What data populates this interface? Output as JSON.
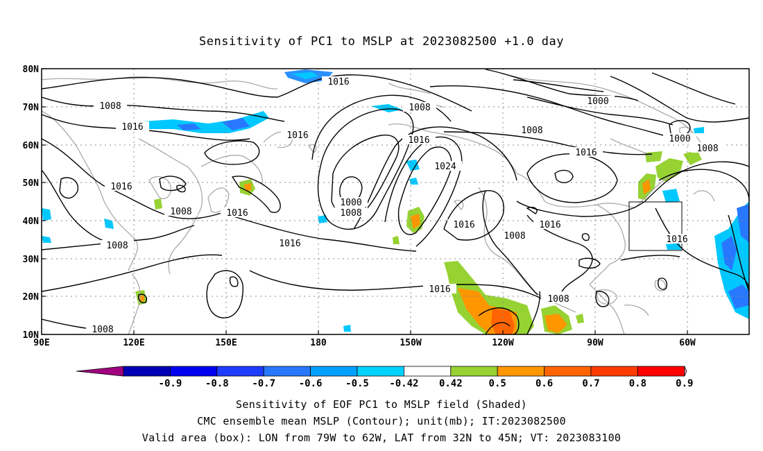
{
  "title": "Sensitivity of PC1 to MSLP at 2023082500 +1.0 day",
  "map": {
    "lat_labels": [
      "80N",
      "70N",
      "60N",
      "50N",
      "40N",
      "30N",
      "20N",
      "10N"
    ],
    "lon_labels": [
      "90E",
      "120E",
      "150E",
      "180",
      "150W",
      "120W",
      "90W",
      "60W"
    ],
    "contour_labels": [
      {
        "text": "1016",
        "name": "isobar-label-1016-north"
      },
      {
        "text": "1008",
        "name": "isobar-label-1008-asia-north"
      },
      {
        "text": "1016",
        "name": "isobar-label-1016-siberia"
      },
      {
        "text": "1016",
        "name": "isobar-label-1016-mongolia"
      },
      {
        "text": "1008",
        "name": "isobar-label-1008-china"
      },
      {
        "text": "1016",
        "name": "isobar-label-1016-japan"
      },
      {
        "text": "1008",
        "name": "isobar-label-1008-south-china"
      },
      {
        "text": "1008",
        "name": "isobar-label-1008-philippines"
      },
      {
        "text": "1016",
        "name": "isobar-label-1016-kamchatka"
      },
      {
        "text": "1016",
        "name": "isobar-label-1016-subtropical"
      },
      {
        "text": "1008",
        "name": "isobar-label-1008-arctic"
      },
      {
        "text": "1016",
        "name": "isobar-label-1016-gulf-of-alaska"
      },
      {
        "text": "1024",
        "name": "isobar-label-1024-high"
      },
      {
        "text": "1000",
        "name": "isobar-label-1000-low"
      },
      {
        "text": "1008",
        "name": "isobar-label-1008-low"
      },
      {
        "text": "1008",
        "name": "isobar-label-1008-canada"
      },
      {
        "text": "1000",
        "name": "isobar-label-1000-arctic-canada"
      },
      {
        "text": "1016",
        "name": "isobar-label-1016-hudson"
      },
      {
        "text": "1000",
        "name": "isobar-label-1000-labrador"
      },
      {
        "text": "1008",
        "name": "isobar-label-1008-labrador"
      },
      {
        "text": "1016",
        "name": "isobar-label-1016-north-pacific"
      },
      {
        "text": "1016",
        "name": "isobar-label-1016-us"
      },
      {
        "text": "1008",
        "name": "isobar-label-1008-southwest-us"
      },
      {
        "text": "1016",
        "name": "isobar-label-1016-atlantic"
      },
      {
        "text": "1016",
        "name": "isobar-label-1016-east-pacific"
      },
      {
        "text": "1008",
        "name": "isobar-label-1008-mexico"
      }
    ],
    "valid_box": {
      "lon_from": "79W",
      "lon_to": "62W",
      "lat_from": "32N",
      "lat_to": "45N"
    }
  },
  "colorbar": {
    "labels": [
      "-0.9",
      "-0.8",
      "-0.7",
      "-0.6",
      "-0.5",
      "-0.42",
      "0.42",
      "0.5",
      "0.6",
      "0.7",
      "0.8",
      "0.9"
    ],
    "colors": [
      "#a0007f",
      "#0000b4",
      "#0000f0",
      "#1e3cff",
      "#2878ff",
      "#00a0ff",
      "#00d2ff",
      "#ffffff",
      "#96d232",
      "#ff9600",
      "#ff6400",
      "#ff3c00",
      "#ff0000",
      "#ffa0c8"
    ]
  },
  "captions": {
    "line1": "Sensitivity of EOF PC1 to MSLP field (Shaded)",
    "line2": "CMC ensemble mean MSLP (Contour); unit(mb); IT:2023082500",
    "line3": "Valid area (box): LON from 79W to 62W, LAT from 32N to 45N; VT: 2023083100"
  }
}
